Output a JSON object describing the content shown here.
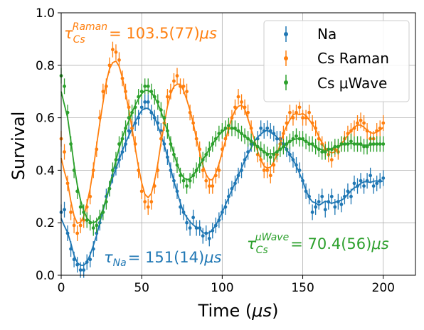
{
  "chart_data": {
    "type": "scatter",
    "xlabel_pre": "Time (",
    "xlabel_sym": "μs",
    "xlabel_post": ")",
    "ylabel": "Survival",
    "xlim": [
      0,
      220
    ],
    "ylim": [
      0,
      1.0
    ],
    "xticks": [
      0,
      50,
      100,
      150,
      200
    ],
    "yticks": [
      0.0,
      0.2,
      0.4,
      0.6,
      0.8,
      1.0
    ],
    "xtick_labels": [
      "0",
      "50",
      "100",
      "150",
      "200"
    ],
    "ytick_labels": [
      "0.0",
      "0.2",
      "0.4",
      "0.6",
      "0.8",
      "1.0"
    ],
    "grid": true,
    "legend_placement": "top-right",
    "series": [
      {
        "name": "Na",
        "color": "#1f77b4",
        "x": [
          0,
          2,
          4,
          6,
          8,
          10,
          12,
          14,
          16,
          18,
          20,
          22,
          24,
          26,
          28,
          30,
          32,
          34,
          36,
          38,
          40,
          42,
          44,
          46,
          48,
          50,
          52,
          54,
          56,
          58,
          60,
          62,
          64,
          66,
          68,
          70,
          72,
          74,
          76,
          78,
          80,
          82,
          84,
          86,
          88,
          90,
          92,
          94,
          96,
          98,
          100,
          102,
          104,
          106,
          108,
          110,
          112,
          114,
          116,
          118,
          120,
          122,
          124,
          126,
          128,
          130,
          132,
          134,
          136,
          138,
          140,
          142,
          144,
          146,
          148,
          150,
          152,
          154,
          156,
          158,
          160,
          162,
          164,
          166,
          168,
          170,
          172,
          174,
          176,
          178,
          180,
          182,
          184,
          186,
          188,
          190,
          192,
          194,
          196,
          198,
          200
        ],
        "y": [
          0.24,
          0.25,
          0.16,
          0.1,
          0.06,
          0.04,
          0.02,
          0.02,
          0.05,
          0.06,
          0.1,
          0.16,
          0.2,
          0.24,
          0.3,
          0.33,
          0.38,
          0.41,
          0.44,
          0.47,
          0.5,
          0.55,
          0.56,
          0.58,
          0.6,
          0.64,
          0.66,
          0.66,
          0.62,
          0.6,
          0.58,
          0.55,
          0.5,
          0.45,
          0.4,
          0.36,
          0.32,
          0.26,
          0.24,
          0.2,
          0.18,
          0.22,
          0.18,
          0.18,
          0.15,
          0.16,
          0.14,
          0.17,
          0.19,
          0.21,
          0.24,
          0.26,
          0.3,
          0.33,
          0.35,
          0.38,
          0.4,
          0.44,
          0.47,
          0.5,
          0.5,
          0.52,
          0.56,
          0.55,
          0.56,
          0.55,
          0.54,
          0.52,
          0.52,
          0.5,
          0.48,
          0.46,
          0.44,
          0.42,
          0.4,
          0.36,
          0.32,
          0.3,
          0.24,
          0.26,
          0.28,
          0.3,
          0.25,
          0.28,
          0.3,
          0.26,
          0.28,
          0.27,
          0.3,
          0.32,
          0.3,
          0.35,
          0.34,
          0.36,
          0.34,
          0.36,
          0.38,
          0.34,
          0.35,
          0.36,
          0.37
        ],
        "fit_label": "151(14)"
      },
      {
        "name": "Cs Raman",
        "color": "#ff7f0e",
        "x": [
          0,
          2,
          4,
          6,
          8,
          10,
          12,
          14,
          16,
          18,
          20,
          22,
          24,
          26,
          28,
          30,
          32,
          34,
          36,
          38,
          40,
          42,
          44,
          46,
          48,
          50,
          52,
          54,
          56,
          58,
          60,
          62,
          64,
          66,
          68,
          70,
          72,
          74,
          76,
          78,
          80,
          82,
          84,
          86,
          88,
          90,
          92,
          94,
          96,
          98,
          100,
          102,
          104,
          106,
          108,
          110,
          112,
          114,
          116,
          118,
          120,
          122,
          124,
          126,
          128,
          130,
          132,
          134,
          136,
          138,
          140,
          142,
          144,
          146,
          148,
          150,
          152,
          154,
          156,
          158,
          160,
          162,
          164,
          166,
          168,
          170,
          172,
          174,
          176,
          178,
          180,
          182,
          184,
          186,
          188,
          190,
          192,
          194,
          196,
          198,
          200
        ],
        "y": [
          0.52,
          0.47,
          0.35,
          0.24,
          0.19,
          0.16,
          0.19,
          0.21,
          0.26,
          0.3,
          0.4,
          0.48,
          0.6,
          0.7,
          0.72,
          0.8,
          0.86,
          0.85,
          0.82,
          0.75,
          0.7,
          0.64,
          0.56,
          0.5,
          0.4,
          0.32,
          0.28,
          0.26,
          0.28,
          0.34,
          0.4,
          0.52,
          0.58,
          0.68,
          0.7,
          0.74,
          0.76,
          0.72,
          0.72,
          0.7,
          0.62,
          0.58,
          0.52,
          0.48,
          0.4,
          0.36,
          0.34,
          0.34,
          0.38,
          0.4,
          0.48,
          0.52,
          0.56,
          0.6,
          0.64,
          0.68,
          0.66,
          0.64,
          0.62,
          0.56,
          0.5,
          0.46,
          0.44,
          0.4,
          0.4,
          0.38,
          0.42,
          0.46,
          0.5,
          0.54,
          0.58,
          0.62,
          0.6,
          0.62,
          0.64,
          0.6,
          0.6,
          0.62,
          0.58,
          0.56,
          0.52,
          0.5,
          0.48,
          0.46,
          0.44,
          0.48,
          0.47,
          0.5,
          0.52,
          0.54,
          0.55,
          0.56,
          0.58,
          0.59,
          0.58,
          0.55,
          0.52,
          0.52,
          0.55,
          0.56,
          0.58
        ],
        "fit_label": "103.5(77)"
      },
      {
        "name": "Cs μWave",
        "color": "#2ca02c",
        "x": [
          0,
          2,
          4,
          6,
          8,
          10,
          12,
          14,
          16,
          18,
          20,
          22,
          24,
          26,
          28,
          30,
          32,
          34,
          36,
          38,
          40,
          42,
          44,
          46,
          48,
          50,
          52,
          54,
          56,
          58,
          60,
          62,
          64,
          66,
          68,
          70,
          72,
          74,
          76,
          78,
          80,
          82,
          84,
          86,
          88,
          90,
          92,
          94,
          96,
          98,
          100,
          102,
          104,
          106,
          108,
          110,
          112,
          114,
          116,
          118,
          120,
          122,
          124,
          126,
          128,
          130,
          132,
          134,
          136,
          138,
          140,
          142,
          144,
          146,
          148,
          150,
          152,
          154,
          156,
          158,
          160,
          162,
          164,
          166,
          168,
          170,
          172,
          174,
          176,
          178,
          180,
          182,
          184,
          186,
          188,
          190,
          192,
          194,
          196,
          198,
          200
        ],
        "y": [
          0.76,
          0.72,
          0.62,
          0.5,
          0.4,
          0.32,
          0.26,
          0.24,
          0.21,
          0.2,
          0.18,
          0.19,
          0.22,
          0.24,
          0.28,
          0.33,
          0.4,
          0.44,
          0.5,
          0.52,
          0.56,
          0.6,
          0.62,
          0.64,
          0.68,
          0.7,
          0.72,
          0.72,
          0.7,
          0.68,
          0.66,
          0.63,
          0.6,
          0.55,
          0.5,
          0.46,
          0.42,
          0.38,
          0.36,
          0.34,
          0.36,
          0.38,
          0.4,
          0.42,
          0.44,
          0.46,
          0.48,
          0.5,
          0.52,
          0.54,
          0.55,
          0.56,
          0.57,
          0.56,
          0.56,
          0.55,
          0.54,
          0.53,
          0.52,
          0.51,
          0.5,
          0.49,
          0.48,
          0.47,
          0.46,
          0.45,
          0.46,
          0.47,
          0.48,
          0.49,
          0.5,
          0.51,
          0.52,
          0.53,
          0.52,
          0.52,
          0.51,
          0.5,
          0.5,
          0.49,
          0.48,
          0.47,
          0.47,
          0.48,
          0.48,
          0.49,
          0.49,
          0.5,
          0.5,
          0.5,
          0.51,
          0.5,
          0.5,
          0.5,
          0.49,
          0.49,
          0.5,
          0.5,
          0.5,
          0.5,
          0.5
        ],
        "fit_label": "70.4(56)"
      }
    ],
    "annotations": {
      "raman_tau": "τ",
      "raman_sub": "Cs",
      "raman_sup": "Raman",
      "raman_value": "= 103.5(77)",
      "raman_unit": "μs",
      "na_tau": "τ",
      "na_sub": "Na",
      "na_value": "= 151(14)",
      "na_unit": "μs",
      "mw_tau": "τ",
      "mw_sub": "Cs",
      "mw_sup": "μWave",
      "mw_value": "= 70.4(56)",
      "mw_unit": "μs"
    }
  }
}
